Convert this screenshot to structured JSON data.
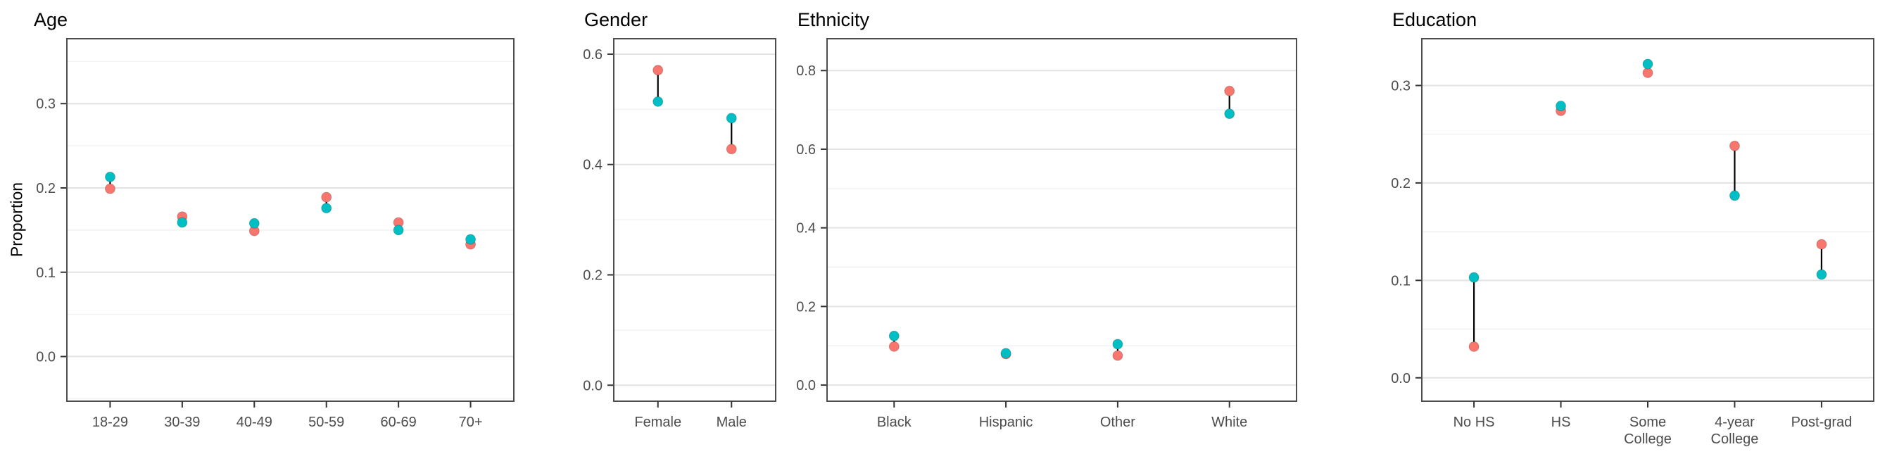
{
  "figure": {
    "ylabel": "Proportion",
    "colors": {
      "series_red": "#F8766D",
      "series_teal": "#00BFC4",
      "segment": "#000000",
      "grid_major": "#E3E3E3",
      "grid_minor": "#F2F2F2",
      "panel_border": "#4D4D4D",
      "axis_text": "#4D4D4D",
      "tick_mark": "#333333",
      "panel_bg": "#FFFFFF"
    }
  },
  "chart_data": [
    {
      "type": "scatter",
      "title": "Age",
      "ylabel": "Proportion",
      "categories": [
        "18-29",
        "30-39",
        "40-49",
        "50-59",
        "60-69",
        "70+"
      ],
      "series": [
        {
          "name": "red",
          "color": "#F8766D",
          "values": [
            0.199,
            0.166,
            0.149,
            0.189,
            0.159,
            0.133
          ]
        },
        {
          "name": "teal",
          "color": "#00BFC4",
          "values": [
            0.213,
            0.159,
            0.158,
            0.176,
            0.15,
            0.139
          ]
        }
      ],
      "yticks": [
        0.0,
        0.1,
        0.2,
        0.3
      ],
      "ylim": [
        -0.053,
        0.377
      ],
      "grid": true,
      "legend": "none"
    },
    {
      "type": "scatter",
      "title": "Gender",
      "ylabel": "",
      "categories": [
        "Female",
        "Male"
      ],
      "series": [
        {
          "name": "red",
          "color": "#F8766D",
          "values": [
            0.571,
            0.428
          ]
        },
        {
          "name": "teal",
          "color": "#00BFC4",
          "values": [
            0.514,
            0.484
          ]
        }
      ],
      "yticks": [
        0.0,
        0.2,
        0.4,
        0.6
      ],
      "ylim": [
        -0.029,
        0.628
      ],
      "grid": true,
      "legend": "none"
    },
    {
      "type": "scatter",
      "title": "Ethnicity",
      "ylabel": "",
      "categories": [
        "Black",
        "Hispanic",
        "Other",
        "White"
      ],
      "series": [
        {
          "name": "red",
          "color": "#F8766D",
          "values": [
            0.098,
            0.079,
            0.075,
            0.748
          ]
        },
        {
          "name": "teal",
          "color": "#00BFC4",
          "values": [
            0.125,
            0.081,
            0.104,
            0.69
          ]
        }
      ],
      "yticks": [
        0.0,
        0.2,
        0.4,
        0.6,
        0.8
      ],
      "ylim": [
        -0.041,
        0.881
      ],
      "grid": true,
      "legend": "none"
    },
    {
      "type": "scatter",
      "title": "Education",
      "ylabel": "",
      "categories": [
        "No HS",
        "HS",
        "Some\nCollege",
        "4-year\nCollege",
        "Post-grad"
      ],
      "series": [
        {
          "name": "red",
          "color": "#F8766D",
          "values": [
            0.032,
            0.274,
            0.313,
            0.238,
            0.137
          ]
        },
        {
          "name": "teal",
          "color": "#00BFC4",
          "values": [
            0.103,
            0.279,
            0.322,
            0.187,
            0.106
          ]
        }
      ],
      "yticks": [
        0.0,
        0.1,
        0.2,
        0.3
      ],
      "ylim": [
        -0.024,
        0.348
      ],
      "grid": true,
      "legend": "none"
    }
  ]
}
